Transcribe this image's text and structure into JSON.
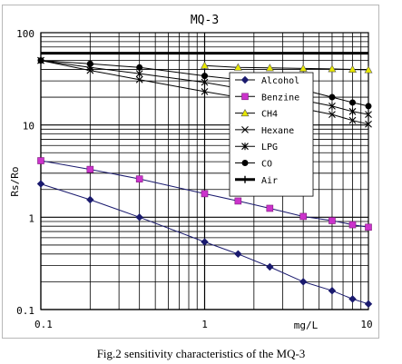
{
  "chart_data": {
    "type": "line",
    "title": "MQ-3",
    "xlabel": "mg/L",
    "ylabel": "Rs/Ro",
    "xscale": "log",
    "yscale": "log",
    "xlim": [
      0.1,
      10
    ],
    "ylim": [
      0.1,
      100
    ],
    "x_tick_labels": [
      "0.1",
      "1",
      "10"
    ],
    "y_tick_labels": [
      "100",
      "10",
      "1",
      "0.1"
    ],
    "grid": true,
    "legend_position": "right",
    "series": [
      {
        "name": "Alcohol",
        "marker": "diamond",
        "color": "#1a1a6e",
        "x": [
          0.1,
          0.2,
          0.4,
          1,
          1.6,
          2.5,
          4,
          6,
          8,
          10
        ],
        "y": [
          2.3,
          1.55,
          1.0,
          0.54,
          0.4,
          0.29,
          0.2,
          0.16,
          0.13,
          0.115
        ]
      },
      {
        "name": "Benzine",
        "marker": "square",
        "color": "#cc33cc",
        "x": [
          0.1,
          0.2,
          0.4,
          1,
          1.6,
          2.5,
          4,
          6,
          8,
          10
        ],
        "y": [
          4.1,
          3.3,
          2.6,
          1.8,
          1.5,
          1.25,
          1.02,
          0.92,
          0.83,
          0.78
        ]
      },
      {
        "name": "CH4",
        "marker": "triangle",
        "color": "#e8e800",
        "x": [
          1,
          1.6,
          2.5,
          4,
          6,
          8,
          10
        ],
        "y": [
          44,
          42,
          41.5,
          41,
          40.5,
          40,
          39.5
        ]
      },
      {
        "name": "Hexane",
        "marker": "x",
        "color": "#000000",
        "x": [
          0.1,
          0.2,
          0.4,
          1,
          1.6,
          2.5,
          4,
          6,
          8,
          10
        ],
        "y": [
          50,
          39,
          31,
          23,
          20,
          17.5,
          15,
          13,
          11.2,
          10.2
        ]
      },
      {
        "name": "LPG",
        "marker": "asterisk",
        "color": "#000000",
        "x": [
          0.1,
          0.2,
          0.4,
          1,
          1.6,
          2.5,
          4,
          6,
          8,
          10
        ],
        "y": [
          50,
          42,
          36,
          29,
          25,
          21.5,
          18.5,
          16,
          14,
          13
        ]
      },
      {
        "name": "CO",
        "marker": "circle",
        "color": "#000000",
        "x": [
          0.1,
          0.2,
          0.4,
          1,
          1.6,
          2.5,
          4,
          6,
          8,
          10
        ],
        "y": [
          50,
          46,
          42,
          34,
          31,
          27,
          24,
          20,
          17.5,
          16
        ]
      },
      {
        "name": "Air",
        "marker": "plus",
        "color": "#000000",
        "x": [
          0.1,
          10
        ],
        "y": [
          60,
          60
        ]
      }
    ]
  },
  "caption": "Fig.2 sensitivity characteristics of the MQ-3"
}
